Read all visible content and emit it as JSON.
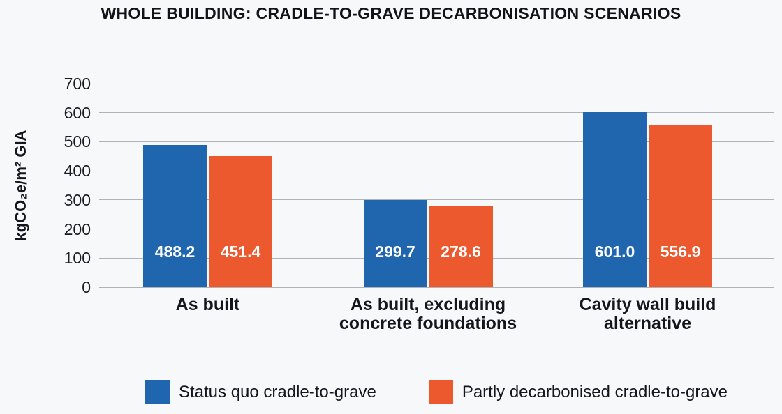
{
  "chart_data": {
    "type": "bar",
    "title": "WHOLE BUILDING: CRADLE-TO-GRAVE DECARBONISATION SCENARIOS",
    "ylabel": "kgCO₂e/m² GIA",
    "xlabel": "",
    "ylim": [
      0,
      700
    ],
    "yticks": [
      0,
      100,
      200,
      300,
      400,
      500,
      600,
      700
    ],
    "grid": true,
    "legend_position": "bottom",
    "categories": [
      "As built",
      "As built, excluding\nconcrete foundations",
      "Cavity wall build\nalternative"
    ],
    "series": [
      {
        "name": "Status quo cradle-to-grave",
        "color": "#1F66AF",
        "values": [
          488.2,
          299.7,
          601.0
        ]
      },
      {
        "name": "Partly decarbonised cradle-to-grave",
        "color": "#ED592E",
        "values": [
          451.4,
          278.6,
          556.9
        ]
      }
    ],
    "value_labels": [
      [
        "488.2",
        "299.7",
        "601.0"
      ],
      [
        "451.4",
        "278.6",
        "556.9"
      ]
    ]
  },
  "colors": {
    "background": "#F7F8FA",
    "gridline": "#AFB2B7",
    "text": "#15151D",
    "bar_value_text": "#FFFFFF"
  }
}
